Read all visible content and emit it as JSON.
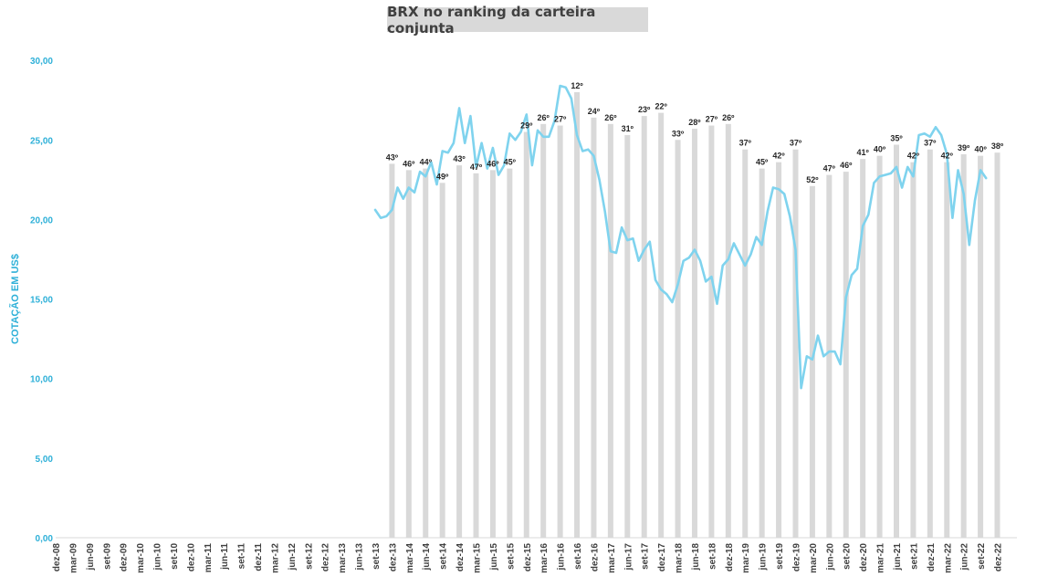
{
  "chart_data": {
    "type": "bar+line",
    "title": "BRX no ranking da carteira conjunta",
    "ylabel": "COTAÇÃO EM US$",
    "ylim": [
      0,
      30
    ],
    "yticks": [
      "0,00",
      "5,00",
      "10,00",
      "15,00",
      "20,00",
      "25,00",
      "30,00"
    ],
    "x_tick_labels": [
      "dez-08",
      "mar-09",
      "jun-09",
      "set-09",
      "dez-09",
      "mar-10",
      "jun-10",
      "set-10",
      "dez-10",
      "mar-11",
      "jun-11",
      "set-11",
      "dez-11",
      "mar-12",
      "jun-12",
      "set-12",
      "dez-12",
      "mar-13",
      "jun-13",
      "set-13",
      "dez-13",
      "mar-14",
      "jun-14",
      "set-14",
      "dez-14",
      "mar-15",
      "jun-15",
      "set-15",
      "dez-15",
      "mar-16",
      "jun-16",
      "set-16",
      "dez-16",
      "mar-17",
      "jun-17",
      "set-17",
      "dez-17",
      "mar-18",
      "jun-18",
      "set-18",
      "dez-18",
      "mar-19",
      "jun-19",
      "set-19",
      "dez-19",
      "mar-20",
      "jun-20",
      "set-20",
      "dez-20",
      "mar-21",
      "jun-21",
      "set-21",
      "dez-21",
      "mar-22",
      "jun-22",
      "set-22",
      "dez-22"
    ],
    "bars": {
      "name": "Ranking",
      "color": "#d9d9d9",
      "categories": [
        "dez-13",
        "mar-14",
        "jun-14",
        "set-14",
        "dez-14",
        "mar-15",
        "jun-15",
        "set-15",
        "dez-15",
        "mar-16",
        "jun-16",
        "set-16",
        "dez-16",
        "mar-17",
        "jun-17",
        "set-17",
        "dez-17",
        "mar-18",
        "jun-18",
        "set-18",
        "dez-18",
        "mar-19",
        "jun-19",
        "set-19",
        "dez-19",
        "mar-20",
        "jun-20",
        "set-20",
        "dez-20",
        "mar-21",
        "jun-21",
        "set-21",
        "dez-21",
        "mar-22",
        "jun-22",
        "set-22",
        "dez-22"
      ],
      "values": [
        23.5,
        23.1,
        23.2,
        22.3,
        23.4,
        22.9,
        23.1,
        23.2,
        25.5,
        26.0,
        25.9,
        28.0,
        26.4,
        26.0,
        25.3,
        26.5,
        26.7,
        25.0,
        25.7,
        25.9,
        26.0,
        24.4,
        23.2,
        23.6,
        24.4,
        22.1,
        22.8,
        23.0,
        23.8,
        24.0,
        24.7,
        23.6,
        24.4,
        23.6,
        24.1,
        24.0,
        24.2
      ],
      "labels": [
        "43º",
        "46º",
        "44º",
        "49º",
        "43º",
        "47º",
        "46º",
        "45º",
        "29º",
        "26º",
        "27º",
        "12º",
        "24º",
        "26º",
        "31º",
        "23º",
        "22º",
        "33º",
        "28º",
        "27º",
        "26º",
        "37º",
        "45º",
        "42º",
        "37º",
        "52º",
        "47º",
        "46º",
        "41º",
        "40º",
        "35º",
        "42º",
        "37º",
        "42º",
        "39º",
        "40º",
        "38º"
      ]
    },
    "line": {
      "name": "Cotação",
      "color": "#7fd3ee",
      "x_start": "set-13",
      "step": "month",
      "values": [
        20.6,
        20.1,
        20.2,
        20.6,
        22.0,
        21.3,
        22.0,
        21.7,
        23.0,
        22.7,
        23.6,
        22.2,
        24.3,
        24.2,
        24.8,
        27.0,
        24.8,
        26.5,
        23.3,
        24.8,
        23.2,
        24.5,
        22.8,
        23.4,
        25.4,
        25.0,
        25.5,
        26.6,
        23.4,
        25.6,
        25.2,
        25.2,
        26.2,
        28.4,
        28.3,
        27.6,
        25.3,
        24.3,
        24.4,
        24.0,
        22.5,
        20.5,
        18.0,
        17.9,
        19.5,
        18.7,
        18.8,
        17.4,
        18.1,
        18.6,
        16.2,
        15.6,
        15.3,
        14.8,
        15.9,
        17.4,
        17.6,
        18.1,
        17.4,
        16.1,
        16.4,
        14.7,
        17.1,
        17.5,
        18.5,
        17.8,
        17.1,
        17.8,
        18.9,
        18.4,
        20.5,
        22.0,
        21.9,
        21.6,
        20.2,
        18.1,
        9.4,
        11.4,
        11.2,
        12.7,
        11.4,
        11.7,
        11.7,
        10.9,
        15.1,
        16.5,
        16.9,
        19.6,
        20.3,
        22.3,
        22.7,
        22.8,
        22.9,
        23.3,
        22.0,
        23.3,
        22.7,
        25.3,
        25.4,
        25.2,
        25.8,
        25.3,
        24.1,
        20.1,
        23.1,
        21.6,
        18.4,
        21.2,
        23.1,
        22.6
      ]
    }
  }
}
